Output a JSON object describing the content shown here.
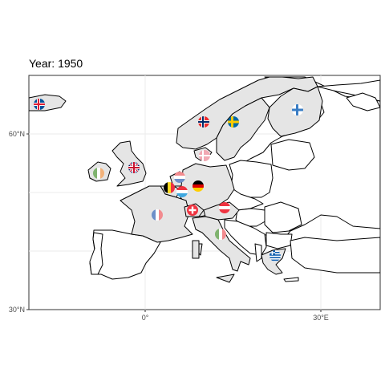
{
  "title": "Year: 1950",
  "axes": {
    "y_ticks": [
      "60°N",
      "30°N"
    ],
    "x_ticks": [
      "0°",
      "30°E"
    ]
  },
  "highlight_fill": "#e5e5e5",
  "default_fill": "#ffffff",
  "flags": [
    {
      "country": "Iceland",
      "icon": "iceland-flag-icon"
    },
    {
      "country": "Norway",
      "icon": "norway-flag-icon"
    },
    {
      "country": "Sweden",
      "icon": "sweden-flag-icon"
    },
    {
      "country": "Finland",
      "icon": "finland-flag-icon"
    },
    {
      "country": "Denmark",
      "icon": "denmark-flag-icon"
    },
    {
      "country": "United Kingdom",
      "icon": "uk-flag-icon"
    },
    {
      "country": "Ireland",
      "icon": "ireland-flag-icon"
    },
    {
      "country": "Netherlands",
      "icon": "netherlands-flag-icon"
    },
    {
      "country": "Belgium",
      "icon": "belgium-flag-icon"
    },
    {
      "country": "Luxembourg",
      "icon": "luxembourg-flag-icon"
    },
    {
      "country": "Germany",
      "icon": "germany-flag-icon"
    },
    {
      "country": "France",
      "icon": "france-flag-icon"
    },
    {
      "country": "Switzerland",
      "icon": "switzerland-flag-icon"
    },
    {
      "country": "Austria",
      "icon": "austria-flag-icon"
    },
    {
      "country": "Italy",
      "icon": "italy-flag-icon"
    },
    {
      "country": "Greece",
      "icon": "greece-flag-icon"
    }
  ]
}
